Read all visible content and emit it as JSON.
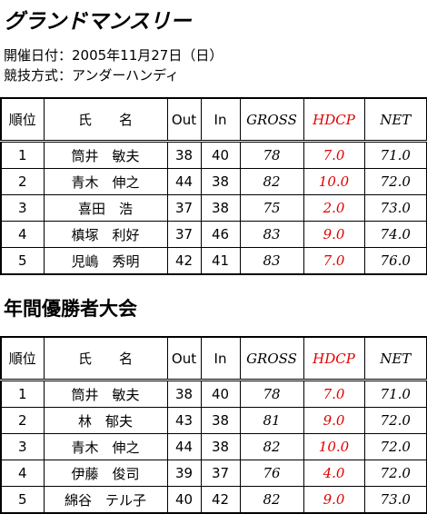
{
  "header": {
    "title": "グランドマンスリー",
    "date": "開催日付：2005年11月27日（日）",
    "method": "競技方式：アンダーハンディ"
  },
  "tables": [
    {
      "columns": [
        "順位",
        "氏　　名",
        "Out",
        "In",
        "GROSS",
        "HDCP",
        "NET"
      ],
      "rows": [
        [
          "1",
          "筒井　敏夫",
          "38",
          "40",
          "78",
          "7.0",
          "71.0"
        ],
        [
          "2",
          "青木　伸之",
          "44",
          "38",
          "82",
          "10.0",
          "72.0"
        ],
        [
          "3",
          "喜田　浩",
          "37",
          "38",
          "75",
          "2.0",
          "73.0"
        ],
        [
          "4",
          "槙塚　利好",
          "37",
          "46",
          "83",
          "9.0",
          "74.0"
        ],
        [
          "5",
          "児嶋　秀明",
          "42",
          "41",
          "83",
          "7.0",
          "76.0"
        ]
      ]
    },
    {
      "title": "年間優勝者大会",
      "columns": [
        "順位",
        "氏　　名",
        "Out",
        "In",
        "GROSS",
        "HDCP",
        "NET"
      ],
      "rows": [
        [
          "1",
          "筒井　敏夫",
          "38",
          "40",
          "78",
          "7.0",
          "71.0"
        ],
        [
          "2",
          "林　郁夫",
          "43",
          "38",
          "81",
          "9.0",
          "72.0"
        ],
        [
          "3",
          "青木　伸之",
          "44",
          "38",
          "82",
          "10.0",
          "72.0"
        ],
        [
          "4",
          "伊藤　俊司",
          "39",
          "37",
          "76",
          "4.0",
          "72.0"
        ],
        [
          "5",
          "綿谷　テル子",
          "40",
          "42",
          "82",
          "9.0",
          "73.0"
        ]
      ]
    }
  ]
}
